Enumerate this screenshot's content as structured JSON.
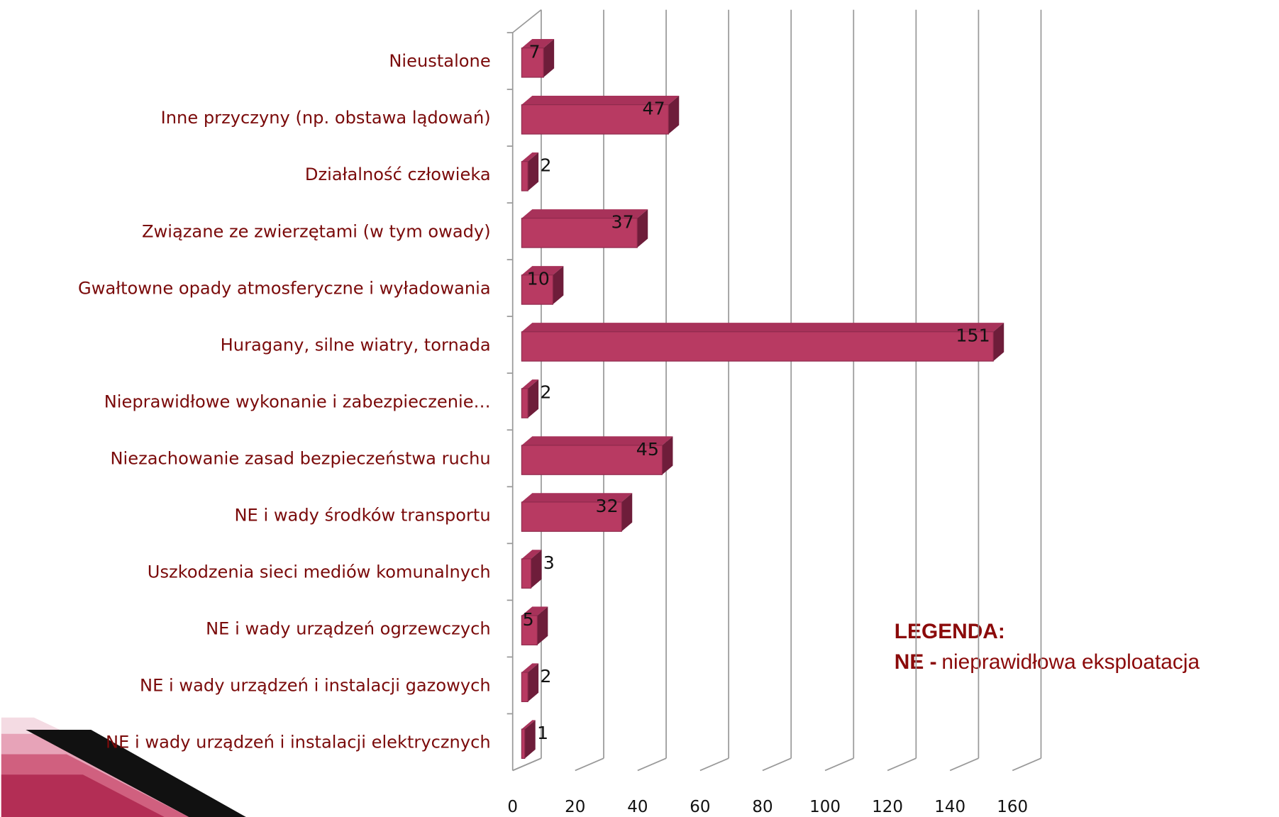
{
  "chart_data": {
    "type": "bar",
    "orientation": "horizontal",
    "categories": [
      "Nieustalone",
      "Inne przyczyny (np. obstawa lądowań)",
      "Działalność człowieka",
      "Związane ze zwierzętami (w tym owady)",
      "Gwałtowne opady atmosferyczne i wyładowania",
      "Huragany, silne wiatry, tornada",
      "Nieprawidłowe wykonanie i zabezpieczenie…",
      "Niezachowanie zasad bezpieczeństwa ruchu",
      "NE i wady środków transportu",
      "Uszkodzenia sieci mediów komunalnych",
      "NE i wady urządzeń ogrzewczych",
      "NE i wady urządzeń i instalacji gazowych",
      "NE i wady urządzeń i instalacji elektrycznych"
    ],
    "values": [
      7,
      47,
      2,
      37,
      10,
      151,
      2,
      45,
      32,
      3,
      5,
      2,
      1
    ],
    "color": "#b83a62",
    "xlim": [
      0,
      160
    ],
    "xticks": [
      0,
      20,
      40,
      60,
      80,
      100,
      120,
      140,
      160
    ],
    "grid": true,
    "legend_title": "LEGENDA:",
    "legend_key": "NE -",
    "legend_text": "nieprawidłowa eksploatacja"
  }
}
